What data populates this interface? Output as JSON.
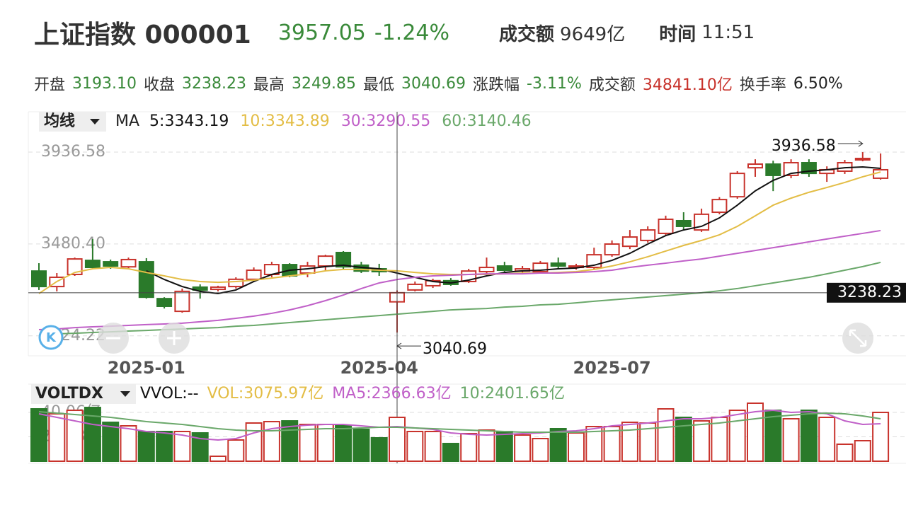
{
  "header": {
    "title": "上证指数 000001",
    "price": "3957.05",
    "change": "-1.24%",
    "amount_label": "成交额",
    "amount": "9649亿",
    "time_label": "时间",
    "time": "11:51"
  },
  "stats": [
    {
      "label": "开盘",
      "value": "3193.10",
      "color": "#3a8a3a"
    },
    {
      "label": "收盘",
      "value": "3238.23",
      "color": "#3a8a3a"
    },
    {
      "label": "最高",
      "value": "3249.85",
      "color": "#3a8a3a"
    },
    {
      "label": "最低",
      "value": "3040.69",
      "color": "#3a8a3a"
    },
    {
      "label": "涨跌幅",
      "value": "-3.11%",
      "color": "#3a8a3a"
    },
    {
      "label": "成交额",
      "value": "34841.10亿",
      "color": "#c8332c"
    },
    {
      "label": "换手率",
      "value": "6.50%",
      "color": "#222222"
    }
  ],
  "chart_data": [
    {
      "type": "candlestick",
      "legend_title": "均线",
      "legend_prefix": "MA",
      "up_color": "#c8332c",
      "down_color": "#2a7a2a",
      "crosshair_index": 20,
      "categories": [
        null,
        null,
        null,
        null,
        null,
        null,
        "2025-01",
        null,
        null,
        null,
        null,
        null,
        null,
        null,
        null,
        null,
        null,
        null,
        null,
        "2025-04",
        null,
        null,
        null,
        null,
        null,
        null,
        null,
        null,
        null,
        null,
        null,
        null,
        "2025-07",
        null,
        null,
        null,
        null,
        null,
        null,
        null,
        null,
        null,
        null,
        null,
        null,
        null,
        null,
        null
      ],
      "open": [
        3346,
        3269,
        3329,
        3399,
        3392,
        3367,
        3392,
        3209,
        3146,
        3266,
        3255,
        3269,
        3305,
        3329,
        3378,
        3336,
        3371,
        3438,
        3375,
        3357,
        3193.1,
        3252,
        3273,
        3298,
        3294,
        3343,
        3371,
        3346,
        3343,
        3385,
        3364,
        3364,
        3427,
        3469,
        3498,
        3533,
        3596,
        3550,
        3638,
        3715,
        3859,
        3877,
        3821,
        3884,
        3831,
        3842,
        3898,
        3807
      ],
      "high": [
        3385,
        3336,
        3413,
        3505,
        3403,
        3413,
        3410,
        3216,
        3259,
        3280,
        3273,
        3315,
        3364,
        3392,
        3385,
        3392,
        3427,
        3445,
        3392,
        3382,
        3249.85,
        3294,
        3308,
        3311,
        3357,
        3413,
        3392,
        3371,
        3396,
        3413,
        3382,
        3462,
        3498,
        3550,
        3568,
        3621,
        3638,
        3656,
        3713,
        3842,
        3901,
        3894,
        3901,
        3901,
        3866,
        3898,
        3936.58,
        3930
      ],
      "low": [
        3252,
        3245,
        3322,
        3357,
        3357,
        3357,
        3209,
        3160,
        3139,
        3209,
        3245,
        3259,
        3294,
        3315,
        3315,
        3315,
        3350,
        3357,
        3336,
        3322,
        3040.69,
        3245,
        3262,
        3273,
        3287,
        3333,
        3343,
        3336,
        3333,
        3357,
        3353,
        3357,
        3417,
        3455,
        3487,
        3522,
        3550,
        3540,
        3628,
        3705,
        3814,
        3743,
        3807,
        3814,
        3789,
        3828,
        3891,
        3800
      ],
      "close": [
        3269,
        3315,
        3406,
        3364,
        3371,
        3403,
        3216,
        3171,
        3245,
        3252,
        3266,
        3305,
        3350,
        3378,
        3322,
        3371,
        3420,
        3367,
        3346,
        3343,
        3238.23,
        3280,
        3298,
        3280,
        3346,
        3364,
        3350,
        3357,
        3385,
        3371,
        3371,
        3427,
        3480,
        3515,
        3550,
        3603,
        3568,
        3628,
        3701,
        3831,
        3877,
        3821,
        3884,
        3831,
        3849,
        3884,
        3905,
        3849
      ],
      "series": [
        {
          "name": "5:3343.19",
          "color": "#111111",
          "values": [
            null,
            null,
            null,
            null,
            null,
            null,
            3347,
            3304,
            3269,
            3245,
            3234,
            3252,
            3294,
            3329,
            3350,
            3357,
            3368,
            3375,
            3364,
            3357,
            3336,
            3315,
            3294,
            3287,
            3301,
            3322,
            3339,
            3347,
            3350,
            3357,
            3361,
            3375,
            3399,
            3434,
            3480,
            3522,
            3550,
            3568,
            3610,
            3673,
            3744,
            3796,
            3831,
            3842,
            3849,
            3859,
            3863,
            3856
          ]
        },
        {
          "name": "10:3343.89",
          "color": "#e3bd45",
          "values": [
            3234,
            3294,
            3339,
            3357,
            3364,
            3357,
            3339,
            3322,
            3304,
            3294,
            3290,
            3294,
            3301,
            3311,
            3322,
            3332,
            3347,
            3354,
            3354,
            3350,
            3347,
            3339,
            3332,
            3329,
            3329,
            3329,
            3332,
            3336,
            3336,
            3339,
            3343,
            3354,
            3371,
            3392,
            3417,
            3445,
            3473,
            3498,
            3526,
            3568,
            3620,
            3673,
            3708,
            3737,
            3761,
            3786,
            3814,
            3838
          ]
        },
        {
          "name": "30:3290.55",
          "color": "#c060c8",
          "values": [
            3055,
            3058,
            3065,
            3069,
            3072,
            3076,
            3080,
            3083,
            3087,
            3094,
            3101,
            3111,
            3122,
            3136,
            3153,
            3174,
            3199,
            3227,
            3259,
            3287,
            3304,
            3315,
            3322,
            3325,
            3329,
            3332,
            3332,
            3332,
            3336,
            3336,
            3339,
            3343,
            3350,
            3364,
            3375,
            3385,
            3396,
            3406,
            3420,
            3434,
            3448,
            3462,
            3476,
            3491,
            3505,
            3519,
            3533,
            3547
          ]
        },
        {
          "name": "60:3140.46",
          "color": "#6aa86a",
          "values": [
            3030,
            3034,
            3037,
            3041,
            3044,
            3048,
            3051,
            3055,
            3058,
            3062,
            3065,
            3072,
            3076,
            3083,
            3090,
            3097,
            3104,
            3111,
            3118,
            3125,
            3132,
            3139,
            3146,
            3153,
            3157,
            3160,
            3167,
            3171,
            3178,
            3181,
            3188,
            3196,
            3203,
            3210,
            3217,
            3224,
            3231,
            3238,
            3248,
            3259,
            3273,
            3287,
            3301,
            3315,
            3332,
            3350,
            3368,
            3389
          ]
        }
      ],
      "ylim": [
        2925,
        4137
      ],
      "yticks": [
        3024.22,
        {
          "value": 3480.4,
          "label": "3480.40"
        },
        3936.58
      ],
      "grid": true
    },
    {
      "type": "bar",
      "title": "VOLTDX",
      "indicators": [
        {
          "name": "VVOL:--",
          "color": "#111111"
        },
        {
          "name": "VOL:3075.97亿",
          "color": "#e3bd45"
        }
      ],
      "values": [
        42.96,
        38.9,
        41.8,
        44.13,
        31.93,
        29.03,
        24.39,
        24.39,
        24.39,
        23.22,
        4.06,
        17.42,
        31.35,
        32.51,
        33.09,
        30.19,
        30.19,
        29.03,
        26.13,
        19.16,
        36.0,
        24.39,
        24.39,
        14.52,
        22.64,
        25.55,
        24.39,
        21.48,
        18.58,
        26.71,
        23.22,
        28.45,
        28.45,
        31.93,
        31.35,
        42.96,
        36.0,
        33.09,
        36.0,
        41.8,
        47.61,
        41.8,
        34.84,
        41.8,
        36.0,
        13.93,
        16.84,
        40.06
      ],
      "series": [
        {
          "name": "MA5:2366.63亿",
          "color": "#c060c8",
          "values": [
            38.9,
            36.0,
            33.09,
            30.19,
            28.45,
            26.71,
            24.39,
            23.22,
            21.48,
            18.58,
            17.42,
            18.58,
            23.22,
            26.71,
            28.45,
            29.61,
            30.19,
            30.19,
            29.03,
            27.87,
            28.45,
            27.29,
            26.13,
            23.22,
            22.06,
            21.48,
            22.06,
            22.64,
            23.22,
            24.39,
            24.97,
            26.71,
            29.03,
            30.19,
            31.35,
            33.09,
            34.84,
            34.84,
            36.0,
            38.32,
            40.64,
            41.8,
            40.06,
            40.64,
            38.9,
            33.09,
            30.19,
            30.77
          ]
        },
        {
          "name": "10:2401.65亿",
          "color": "#6aa86a",
          "values": [
            40.64,
            39.48,
            38.32,
            37.16,
            36.0,
            34.26,
            32.51,
            31.35,
            30.19,
            28.45,
            26.71,
            25.55,
            24.97,
            24.97,
            25.55,
            26.13,
            26.71,
            26.71,
            27.29,
            27.87,
            27.87,
            27.29,
            26.71,
            26.13,
            25.55,
            24.97,
            24.39,
            23.8,
            23.8,
            23.8,
            23.8,
            24.39,
            24.97,
            25.55,
            26.71,
            27.87,
            29.03,
            30.19,
            31.35,
            33.09,
            34.84,
            36.58,
            37.74,
            38.9,
            39.48,
            38.9,
            37.16,
            34.84
          ]
        }
      ],
      "ylim": [
        0,
        63.3
      ],
      "yticks": [
        {
          "value": 20.03,
          "label": "20.03亿"
        },
        {
          "value": 40.06,
          "label": "40.06亿"
        }
      ]
    }
  ]
}
